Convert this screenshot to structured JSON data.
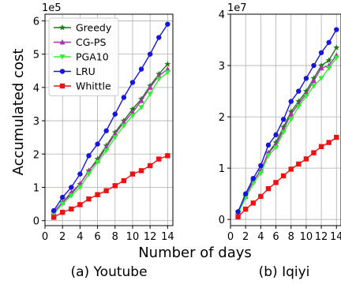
{
  "figure": {
    "ylabel": "Accumulated cost",
    "xlabel": "Number of days"
  },
  "chart_data": [
    {
      "type": "line",
      "caption": "(a) Youtube",
      "xlabel": "",
      "ylabel": "",
      "y_multiplier": "1e5",
      "xlim": [
        0,
        14.6
      ],
      "ylim": [
        -0.15,
        6.2
      ],
      "xticks": [
        0,
        2,
        4,
        6,
        8,
        10,
        12,
        14
      ],
      "yticks": [
        0,
        1,
        2,
        3,
        4,
        5,
        6
      ],
      "grid": true,
      "legend": "top-left",
      "x": [
        1,
        2,
        3,
        4,
        5,
        6,
        7,
        8,
        9,
        10,
        11,
        12,
        13,
        14
      ],
      "series": [
        {
          "name": "Greedy",
          "color": "#1a7a1a",
          "marker": "star",
          "values": [
            0.25,
            0.55,
            0.8,
            1.1,
            1.5,
            1.85,
            2.25,
            2.65,
            3.0,
            3.35,
            3.65,
            4.05,
            4.4,
            4.7
          ]
        },
        {
          "name": "CG-PS",
          "color": "#b030b0",
          "marker": "triangle",
          "values": [
            0.25,
            0.55,
            0.85,
            1.1,
            1.5,
            1.8,
            2.2,
            2.6,
            2.95,
            3.25,
            3.6,
            4.0,
            4.35,
            4.55
          ]
        },
        {
          "name": "PGA10",
          "color": "#33ee33",
          "marker": "triangle-down",
          "values": [
            0.2,
            0.5,
            0.75,
            1.0,
            1.4,
            1.75,
            2.1,
            2.5,
            2.85,
            3.15,
            3.4,
            3.8,
            4.25,
            4.45
          ]
        },
        {
          "name": "LRU",
          "color": "#1515dd",
          "marker": "circle",
          "values": [
            0.3,
            0.7,
            1.0,
            1.4,
            1.95,
            2.3,
            2.7,
            3.2,
            3.7,
            4.15,
            4.55,
            5.0,
            5.5,
            5.9
          ]
        },
        {
          "name": "Whittle",
          "color": "#ee1111",
          "marker": "square",
          "values": [
            0.1,
            0.25,
            0.35,
            0.48,
            0.65,
            0.78,
            0.9,
            1.05,
            1.2,
            1.4,
            1.5,
            1.65,
            1.85,
            1.95
          ]
        }
      ]
    },
    {
      "type": "line",
      "caption": "(b) Iqiyi",
      "xlabel": "",
      "ylabel": "",
      "y_multiplier": "1e7",
      "xlim": [
        0,
        14.6
      ],
      "ylim": [
        -0.12,
        4.0
      ],
      "xticks": [
        0,
        2,
        4,
        6,
        8,
        10,
        12,
        14
      ],
      "yticks": [
        0,
        1,
        2,
        3,
        4
      ],
      "grid": true,
      "legend": "none",
      "x": [
        1,
        2,
        3,
        4,
        5,
        6,
        7,
        8,
        9,
        10,
        11,
        12,
        13,
        14
      ],
      "series": [
        {
          "name": "Greedy",
          "color": "#1a7a1a",
          "marker": "star",
          "values": [
            0.15,
            0.45,
            0.75,
            0.95,
            1.3,
            1.5,
            1.8,
            2.1,
            2.3,
            2.5,
            2.75,
            3.0,
            3.1,
            3.35
          ]
        },
        {
          "name": "CG-PS",
          "color": "#b030b0",
          "marker": "triangle",
          "values": [
            0.15,
            0.45,
            0.75,
            0.95,
            1.3,
            1.45,
            1.75,
            2.05,
            2.25,
            2.45,
            2.7,
            2.95,
            3.0,
            3.2
          ]
        },
        {
          "name": "PGA10",
          "color": "#33ee33",
          "marker": "triangle-down",
          "values": [
            0.12,
            0.42,
            0.7,
            0.9,
            1.25,
            1.4,
            1.7,
            1.95,
            2.2,
            2.4,
            2.6,
            2.75,
            2.95,
            3.15
          ]
        },
        {
          "name": "LRU",
          "color": "#1515dd",
          "marker": "circle",
          "values": [
            0.15,
            0.5,
            0.8,
            1.05,
            1.45,
            1.65,
            1.95,
            2.3,
            2.5,
            2.75,
            3.0,
            3.25,
            3.45,
            3.7
          ]
        },
        {
          "name": "Whittle",
          "color": "#ee1111",
          "marker": "square",
          "values": [
            0.05,
            0.2,
            0.32,
            0.45,
            0.6,
            0.72,
            0.85,
            0.98,
            1.08,
            1.18,
            1.3,
            1.42,
            1.5,
            1.6
          ]
        }
      ]
    }
  ]
}
